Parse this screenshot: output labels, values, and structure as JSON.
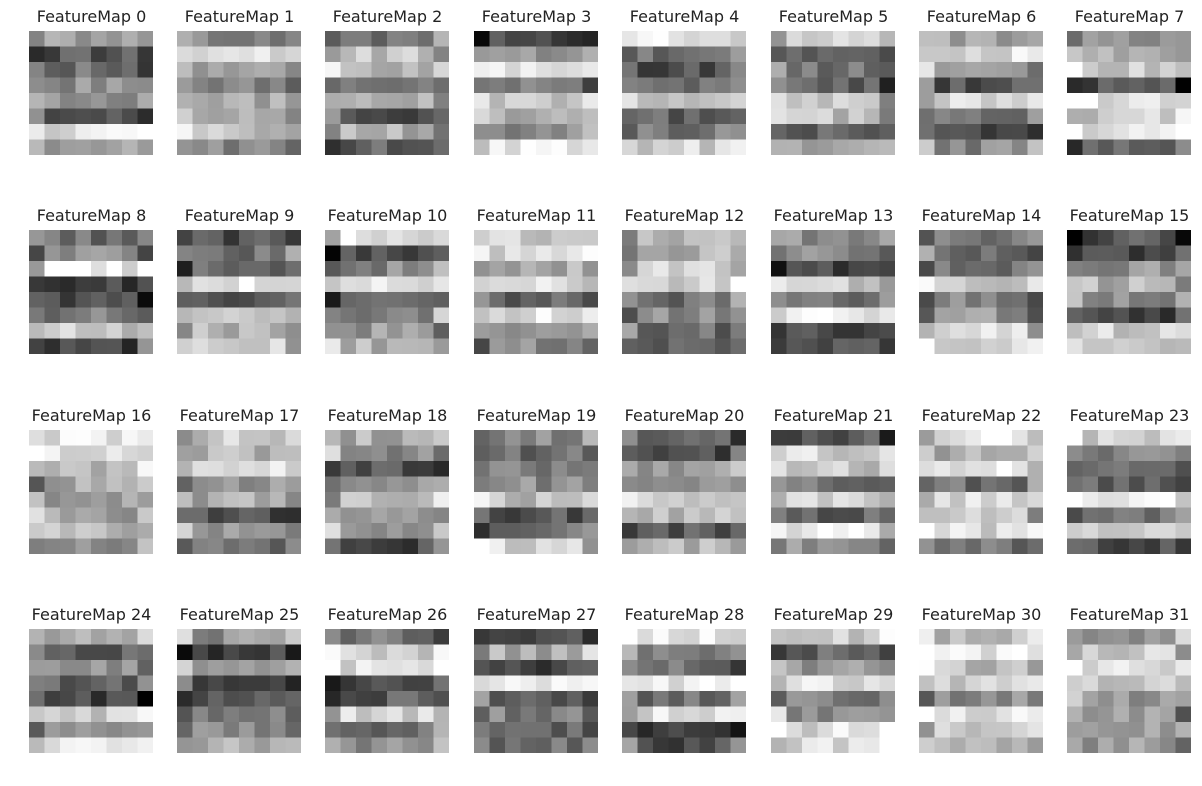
{
  "chart_data": {
    "type": "heatmap",
    "colormap": "grayscale",
    "grid": false,
    "layout": {
      "rows": 4,
      "cols": 8,
      "cells_per_map": 8
    },
    "feature_maps": [
      {
        "title": "FeatureMap 0",
        "index": 0
      },
      {
        "title": "FeatureMap 1",
        "index": 1
      },
      {
        "title": "FeatureMap 2",
        "index": 2
      },
      {
        "title": "FeatureMap 3",
        "index": 3
      },
      {
        "title": "FeatureMap 4",
        "index": 4
      },
      {
        "title": "FeatureMap 5",
        "index": 5
      },
      {
        "title": "FeatureMap 6",
        "index": 6
      },
      {
        "title": "FeatureMap 7",
        "index": 7
      },
      {
        "title": "FeatureMap 8",
        "index": 8
      },
      {
        "title": "FeatureMap 9",
        "index": 9
      },
      {
        "title": "FeatureMap 10",
        "index": 10
      },
      {
        "title": "FeatureMap 11",
        "index": 11
      },
      {
        "title": "FeatureMap 12",
        "index": 12
      },
      {
        "title": "FeatureMap 13",
        "index": 13
      },
      {
        "title": "FeatureMap 14",
        "index": 14
      },
      {
        "title": "FeatureMap 15",
        "index": 15
      },
      {
        "title": "FeatureMap 16",
        "index": 16
      },
      {
        "title": "FeatureMap 17",
        "index": 17
      },
      {
        "title": "FeatureMap 18",
        "index": 18
      },
      {
        "title": "FeatureMap 19",
        "index": 19
      },
      {
        "title": "FeatureMap 20",
        "index": 20
      },
      {
        "title": "FeatureMap 21",
        "index": 21
      },
      {
        "title": "FeatureMap 22",
        "index": 22
      },
      {
        "title": "FeatureMap 23",
        "index": 23
      },
      {
        "title": "FeatureMap 24",
        "index": 24
      },
      {
        "title": "FeatureMap 25",
        "index": 25
      },
      {
        "title": "FeatureMap 26",
        "index": 26
      },
      {
        "title": "FeatureMap 27",
        "index": 27
      },
      {
        "title": "FeatureMap 28",
        "index": 28
      },
      {
        "title": "FeatureMap 29",
        "index": 29
      },
      {
        "title": "FeatureMap 30",
        "index": 30
      },
      {
        "title": "FeatureMap 31",
        "index": 31
      }
    ]
  }
}
